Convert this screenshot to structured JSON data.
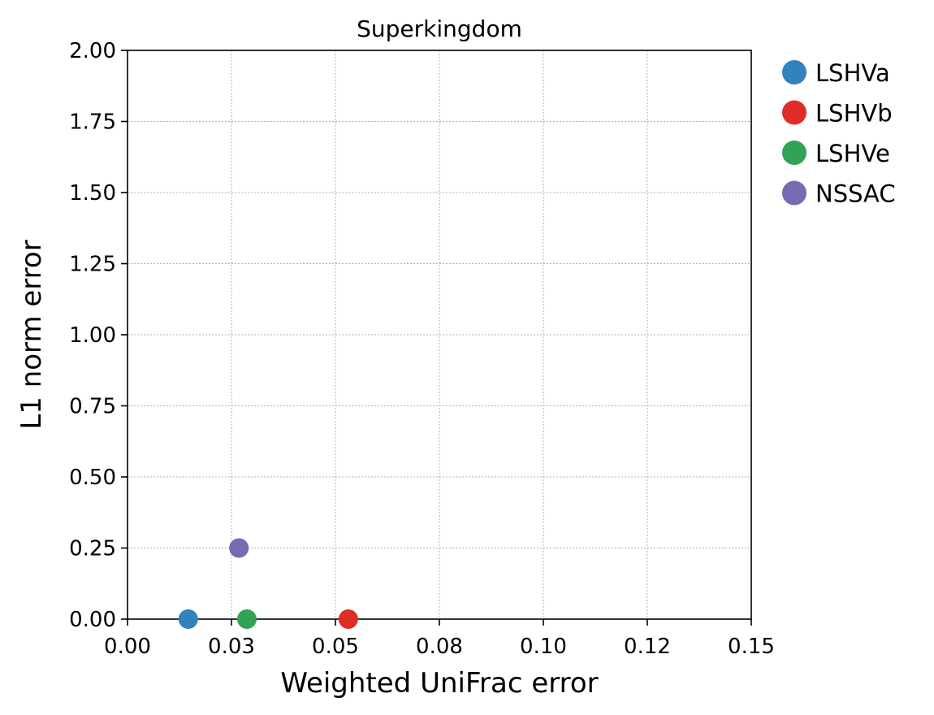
{
  "chart_data": {
    "type": "scatter",
    "title": "Superkingdom",
    "xlabel": "Weighted UniFrac error",
    "ylabel": "L1 norm error",
    "xlim": [
      0,
      0.15
    ],
    "ylim": [
      0,
      2.0
    ],
    "x_ticks": [
      0,
      0.025,
      0.05,
      0.075,
      0.1,
      0.125,
      0.15
    ],
    "x_tick_labels": [
      "0.00",
      "0.03",
      "0.05",
      "0.08",
      "0.10",
      "0.12",
      "0.15"
    ],
    "y_ticks": [
      0,
      0.25,
      0.5,
      0.75,
      1.0,
      1.25,
      1.5,
      1.75,
      2.0
    ],
    "y_tick_labels": [
      "0.00",
      "0.25",
      "0.50",
      "0.75",
      "1.00",
      "1.25",
      "1.50",
      "1.75",
      "2.00"
    ],
    "grid": true,
    "legend_position": "outside-right-top",
    "series": [
      {
        "name": "LSHVa",
        "color": "#3182bd",
        "x": [
          0.0146
        ],
        "y": [
          0.0
        ]
      },
      {
        "name": "LSHVb",
        "color": "#de2d26",
        "x": [
          0.0531
        ],
        "y": [
          0.0
        ]
      },
      {
        "name": "LSHVe",
        "color": "#31a354",
        "x": [
          0.0287
        ],
        "y": [
          0.0
        ]
      },
      {
        "name": "NSSAC",
        "color": "#756bb1",
        "x": [
          0.0268
        ],
        "y": [
          0.25
        ]
      }
    ]
  }
}
